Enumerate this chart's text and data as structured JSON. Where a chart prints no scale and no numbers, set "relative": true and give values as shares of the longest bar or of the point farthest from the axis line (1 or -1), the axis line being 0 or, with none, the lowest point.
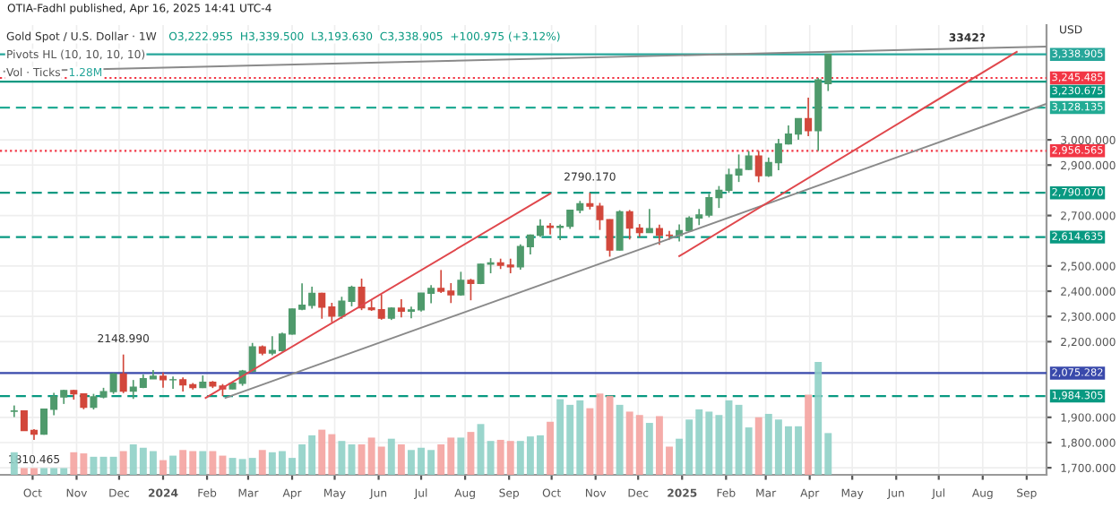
{
  "chart_data": [
    {
      "type": "candlestick",
      "title": "Gold Spot / U.S. Dollar · 1W",
      "subtitle": "O3,222.955  H3,339.500  L3,193.630  C3,338.905  +100.975 (+3.12%)",
      "ylabel": "USD",
      "x": [
        "2023-09-18",
        "2023-09-25",
        "2023-10-02",
        "2023-10-09",
        "2023-10-16",
        "2023-10-23",
        "2023-10-30",
        "2023-11-06",
        "2023-11-13",
        "2023-11-20",
        "2023-11-27",
        "2023-12-04",
        "2023-12-11",
        "2023-12-18",
        "2023-12-25",
        "2024-01-01",
        "2024-01-08",
        "2024-01-15",
        "2024-01-22",
        "2024-01-29",
        "2024-02-05",
        "2024-02-12",
        "2024-02-19",
        "2024-02-26",
        "2024-03-04",
        "2024-03-11",
        "2024-03-18",
        "2024-03-25",
        "2024-04-01",
        "2024-04-08",
        "2024-04-15",
        "2024-04-22",
        "2024-04-29",
        "2024-05-06",
        "2024-05-13",
        "2024-05-20",
        "2024-05-27",
        "2024-06-03",
        "2024-06-10",
        "2024-06-17",
        "2024-06-24",
        "2024-07-01",
        "2024-07-08",
        "2024-07-15",
        "2024-07-22",
        "2024-07-29",
        "2024-08-05",
        "2024-08-12",
        "2024-08-19",
        "2024-08-26",
        "2024-09-02",
        "2024-09-09",
        "2024-09-16",
        "2024-09-23",
        "2024-09-30",
        "2024-10-07",
        "2024-10-14",
        "2024-10-21",
        "2024-10-28",
        "2024-11-04",
        "2024-11-11",
        "2024-11-18",
        "2024-11-25",
        "2024-12-02",
        "2024-12-09",
        "2024-12-16",
        "2024-12-23",
        "2024-12-30",
        "2025-01-06",
        "2025-01-13",
        "2025-01-20",
        "2025-01-27",
        "2025-02-03",
        "2025-02-10",
        "2025-02-17",
        "2025-02-24",
        "2025-03-03",
        "2025-03-10",
        "2025-03-17",
        "2025-03-24",
        "2025-03-31",
        "2025-04-07",
        "2025-04-14"
      ],
      "ohlc": [
        [
          1924,
          1947,
          1901,
          1925
        ],
        [
          1925,
          1928,
          1846,
          1848
        ],
        [
          1848,
          1853,
          1810.465,
          1833
        ],
        [
          1833,
          1935,
          1831,
          1932
        ],
        [
          1932,
          1997,
          1908,
          1981
        ],
        [
          1981,
          2009,
          1953,
          2006
        ],
        [
          2006,
          2009,
          1970,
          1993
        ],
        [
          1993,
          1995,
          1932,
          1940
        ],
        [
          1940,
          1993,
          1931,
          1981
        ],
        [
          1981,
          2017,
          1975,
          2002
        ],
        [
          2002,
          2075,
          1993,
          2072
        ],
        [
          2072,
          2148.99,
          1996,
          2004
        ],
        [
          2004,
          2048,
          1973,
          2019
        ],
        [
          2019,
          2070,
          2016,
          2053
        ],
        [
          2053,
          2088,
          2052,
          2063
        ],
        [
          2063,
          2078,
          2017,
          2049
        ],
        [
          2049,
          2062,
          2013,
          2049
        ],
        [
          2049,
          2058,
          2002,
          2029
        ],
        [
          2029,
          2036,
          2010,
          2018
        ],
        [
          2018,
          2066,
          2016,
          2039
        ],
        [
          2039,
          2044,
          2016,
          2024
        ],
        [
          2024,
          2032,
          1984,
          2013
        ],
        [
          2013,
          2041,
          2011,
          2035
        ],
        [
          2035,
          2088,
          2025,
          2083
        ],
        [
          2083,
          2195,
          2078,
          2179
        ],
        [
          2179,
          2185,
          2146,
          2155
        ],
        [
          2155,
          2222,
          2146,
          2165
        ],
        [
          2165,
          2236,
          2160,
          2230
        ],
        [
          2230,
          2331,
          2228,
          2329
        ],
        [
          2329,
          2431,
          2325,
          2344
        ],
        [
          2344,
          2418,
          2331,
          2391
        ],
        [
          2391,
          2394,
          2291,
          2337
        ],
        [
          2337,
          2354,
          2277,
          2301
        ],
        [
          2301,
          2378,
          2291,
          2360
        ],
        [
          2360,
          2422,
          2340,
          2415
        ],
        [
          2415,
          2450,
          2325,
          2334
        ],
        [
          2334,
          2364,
          2322,
          2327
        ],
        [
          2327,
          2387,
          2287,
          2293
        ],
        [
          2293,
          2336,
          2286,
          2333
        ],
        [
          2333,
          2368,
          2296,
          2321
        ],
        [
          2321,
          2339,
          2293,
          2326
        ],
        [
          2326,
          2393,
          2319,
          2392
        ],
        [
          2392,
          2424,
          2352,
          2411
        ],
        [
          2411,
          2484,
          2393,
          2400
        ],
        [
          2400,
          2432,
          2353,
          2386
        ],
        [
          2386,
          2477,
          2382,
          2443
        ],
        [
          2443,
          2449,
          2364,
          2431
        ],
        [
          2431,
          2509,
          2428,
          2507
        ],
        [
          2507,
          2531,
          2471,
          2512
        ],
        [
          2512,
          2529,
          2488,
          2503
        ],
        [
          2503,
          2529,
          2471,
          2497
        ],
        [
          2497,
          2586,
          2485,
          2577
        ],
        [
          2577,
          2625,
          2546,
          2622
        ],
        [
          2622,
          2685,
          2615,
          2658
        ],
        [
          2658,
          2670,
          2625,
          2653
        ],
        [
          2653,
          2665,
          2603,
          2657
        ],
        [
          2657,
          2722,
          2647,
          2721
        ],
        [
          2721,
          2758,
          2709,
          2747
        ],
        [
          2747,
          2790.17,
          2724,
          2737
        ],
        [
          2737,
          2750,
          2643,
          2684
        ],
        [
          2684,
          2685,
          2537,
          2563
        ],
        [
          2563,
          2721,
          2561,
          2715
        ],
        [
          2715,
          2722,
          2605,
          2650
        ],
        [
          2650,
          2666,
          2615,
          2633
        ],
        [
          2633,
          2726,
          2631,
          2648
        ],
        [
          2648,
          2664,
          2584,
          2622
        ],
        [
          2622,
          2639,
          2604,
          2621
        ],
        [
          2621,
          2665,
          2597,
          2640
        ],
        [
          2640,
          2697,
          2636,
          2690
        ],
        [
          2690,
          2726,
          2662,
          2702
        ],
        [
          2702,
          2786,
          2693,
          2771
        ],
        [
          2771,
          2817,
          2730,
          2800
        ],
        [
          2800,
          2886,
          2790,
          2861
        ],
        [
          2861,
          2942,
          2833,
          2883
        ],
        [
          2883,
          2955,
          2881,
          2936
        ],
        [
          2936,
          2956,
          2832,
          2858
        ],
        [
          2858,
          2930,
          2853,
          2910
        ],
        [
          2910,
          3004,
          2880,
          2984
        ],
        [
          2984,
          3057,
          2982,
          3023
        ],
        [
          3023,
          3086,
          3000,
          3084
        ],
        [
          3084,
          3167,
          3015,
          3037
        ],
        [
          3037,
          3245.485,
          2956.565,
          3238
        ],
        [
          3222.955,
          3339.5,
          3193.63,
          3338.905
        ]
      ],
      "colors": [
        "#4f9a6c",
        "#d2473b",
        "#d2473b",
        "#4f9a6c",
        "#4f9a6c",
        "#4f9a6c",
        "#d2473b",
        "#d2473b",
        "#4f9a6c",
        "#4f9a6c",
        "#4f9a6c",
        "#d2473b",
        "#4f9a6c",
        "#4f9a6c",
        "#4f9a6c",
        "#d2473b",
        "#4f9a6c",
        "#d2473b",
        "#d2473b",
        "#4f9a6c",
        "#d2473b",
        "#d2473b",
        "#4f9a6c",
        "#4f9a6c",
        "#4f9a6c",
        "#d2473b",
        "#4f9a6c",
        "#4f9a6c",
        "#4f9a6c",
        "#4f9a6c",
        "#4f9a6c",
        "#d2473b",
        "#d2473b",
        "#4f9a6c",
        "#4f9a6c",
        "#d2473b",
        "#d2473b",
        "#d2473b",
        "#4f9a6c",
        "#d2473b",
        "#4f9a6c",
        "#4f9a6c",
        "#4f9a6c",
        "#d2473b",
        "#d2473b",
        "#4f9a6c",
        "#d2473b",
        "#4f9a6c",
        "#4f9a6c",
        "#d2473b",
        "#d2473b",
        "#4f9a6c",
        "#4f9a6c",
        "#4f9a6c",
        "#d2473b",
        "#4f9a6c",
        "#4f9a6c",
        "#4f9a6c",
        "#d2473b",
        "#d2473b",
        "#d2473b",
        "#4f9a6c",
        "#d2473b",
        "#d2473b",
        "#4f9a6c",
        "#d2473b",
        "#d2473b",
        "#4f9a6c",
        "#4f9a6c",
        "#4f9a6c",
        "#4f9a6c",
        "#4f9a6c",
        "#4f9a6c",
        "#4f9a6c",
        "#4f9a6c",
        "#d2473b",
        "#4f9a6c",
        "#4f9a6c",
        "#4f9a6c",
        "#4f9a6c",
        "#d2473b",
        "#4f9a6c",
        "#4f9a6c"
      ],
      "series": [
        {
          "type": "line",
          "x": [
            "2023-09-11",
            "2025-09-15"
          ],
          "values": [
            3271,
            3370
          ],
          "color": "#8a8a8a"
        },
        {
          "type": "line",
          "x": [
            "2024-02-14",
            "2025-09-15"
          ],
          "values": [
            1977,
            3143
          ],
          "color": "#8a8a8a"
        },
        {
          "type": "line",
          "x": [
            "2024-01-31",
            "2024-09-30"
          ],
          "values": [
            1977,
            2787
          ],
          "color": "#e0474c"
        },
        {
          "type": "line",
          "x": [
            "2024-12-30",
            "2025-08-25"
          ],
          "values": [
            2539,
            3349
          ],
          "color": "#e0474c"
        }
      ],
      "ref_lines": [
        {
          "axis": "y",
          "value": 3338.905,
          "label": "3,338.905",
          "color": "#26a69a",
          "line_style": "solid"
        },
        {
          "axis": "y",
          "value": 3245.485,
          "label": "3,245.485",
          "color": "#f23645",
          "line_style": "dotted"
        },
        {
          "axis": "y",
          "value": 3230.675,
          "label": "3,230.675",
          "color": "#089981",
          "line_style": "solid"
        },
        {
          "axis": "y",
          "value": 3128.135,
          "label": "3,128.135",
          "color": "#22ab94",
          "line_style": "dashed"
        },
        {
          "axis": "y",
          "value": 2956.565,
          "label": "2,956.565",
          "color": "#f23645",
          "line_style": "dotted"
        },
        {
          "axis": "y",
          "value": 2790.07,
          "label": "2,790.070",
          "color": "#089981",
          "line_style": "dashed"
        },
        {
          "axis": "y",
          "value": 2614.635,
          "label": "2,614.635",
          "color": "#089981",
          "line_style": "dashed"
        },
        {
          "axis": "y",
          "value": 2075.282,
          "label": "2,075.282",
          "color": "#3949ab",
          "line_style": "solid"
        },
        {
          "axis": "y",
          "value": 1984.305,
          "label": "1,984.305",
          "color": "#089981",
          "line_style": "dashed"
        }
      ],
      "annotations": [
        "OTIA-Fadhl published, Apr 16, 2025 14:41 UTC-4",
        "Pivots HL (10, 10, 10, 10)",
        {
          "text": "2148.990",
          "x": "2023-12-04",
          "y": 2148.99
        },
        {
          "text": "1810.465",
          "x": "2023-10-02",
          "y": 1810.465
        },
        {
          "text": "2790.170",
          "x": "2024-10-28",
          "y": 2790.17
        },
        {
          "text": "3342?",
          "x": "2025-07-21",
          "y": 3342
        }
      ],
      "xlim": [
        "2023-09-08",
        "2025-09-15"
      ],
      "xticks": [
        {
          "value": "2023-10-01",
          "label": "Oct"
        },
        {
          "value": "2023-11-01",
          "label": "Nov"
        },
        {
          "value": "2023-12-01",
          "label": "Dec"
        },
        {
          "value": "2024-01-01",
          "label": "2024"
        },
        {
          "value": "2024-02-01",
          "label": "Feb"
        },
        {
          "value": "2024-03-01",
          "label": "Mar"
        },
        {
          "value": "2024-04-01",
          "label": "Apr"
        },
        {
          "value": "2024-05-01",
          "label": "May"
        },
        {
          "value": "2024-06-01",
          "label": "Jun"
        },
        {
          "value": "2024-07-01",
          "label": "Jul"
        },
        {
          "value": "2024-08-01",
          "label": "Aug"
        },
        {
          "value": "2024-09-01",
          "label": "Sep"
        },
        {
          "value": "2024-10-01",
          "label": "Oct"
        },
        {
          "value": "2024-11-01",
          "label": "Nov"
        },
        {
          "value": "2024-12-01",
          "label": "Dec"
        },
        {
          "value": "2025-01-01",
          "label": "2025"
        },
        {
          "value": "2025-02-01",
          "label": "Feb"
        },
        {
          "value": "2025-03-01",
          "label": "Mar"
        },
        {
          "value": "2025-04-01",
          "label": "Apr"
        },
        {
          "value": "2025-05-01",
          "label": "May"
        },
        {
          "value": "2025-06-01",
          "label": "Jun"
        },
        {
          "value": "2025-07-01",
          "label": "Jul"
        },
        {
          "value": "2025-08-01",
          "label": "Aug"
        },
        {
          "value": "2025-09-01",
          "label": "Sep"
        }
      ],
      "ylim": [
        1672,
        3455
      ],
      "yticks": [
        {
          "value": 1700,
          "label": "1,700.000"
        },
        {
          "value": 1800,
          "label": "1,800.000"
        },
        {
          "value": 1900,
          "label": "1,900.000"
        },
        {
          "value": 2200,
          "label": "2,200.000"
        },
        {
          "value": 2300,
          "label": "2,300.000"
        },
        {
          "value": 2400,
          "label": "2,400.000"
        },
        {
          "value": 2500,
          "label": "2,500.000"
        },
        {
          "value": 2700,
          "label": "2,700.000"
        },
        {
          "value": 2900,
          "label": "2,900.000"
        },
        {
          "value": 3000,
          "label": "3,000.000"
        }
      ],
      "grid": true
    },
    {
      "type": "bar",
      "relative": true,
      "tick_labels": false,
      "xlim": [
        "2023-09-08",
        "2025-09-15"
      ],
      "annotations": [
        "Vol · Ticks",
        "1.28M"
      ],
      "x": [
        "2023-09-18",
        "2023-09-25",
        "2023-10-02",
        "2023-10-09",
        "2023-10-16",
        "2023-10-23",
        "2023-10-30",
        "2023-11-06",
        "2023-11-13",
        "2023-11-20",
        "2023-11-27",
        "2023-12-04",
        "2023-12-11",
        "2023-12-18",
        "2023-12-25",
        "2024-01-01",
        "2024-01-08",
        "2024-01-15",
        "2024-01-22",
        "2024-01-29",
        "2024-02-05",
        "2024-02-12",
        "2024-02-19",
        "2024-02-26",
        "2024-03-04",
        "2024-03-11",
        "2024-03-18",
        "2024-03-25",
        "2024-04-01",
        "2024-04-08",
        "2024-04-15",
        "2024-04-22",
        "2024-04-29",
        "2024-05-06",
        "2024-05-13",
        "2024-05-20",
        "2024-05-27",
        "2024-06-03",
        "2024-06-10",
        "2024-06-17",
        "2024-06-24",
        "2024-07-01",
        "2024-07-08",
        "2024-07-15",
        "2024-07-22",
        "2024-07-29",
        "2024-08-05",
        "2024-08-12",
        "2024-08-19",
        "2024-08-26",
        "2024-09-02",
        "2024-09-09",
        "2024-09-16",
        "2024-09-23",
        "2024-09-30",
        "2024-10-07",
        "2024-10-14",
        "2024-10-21",
        "2024-10-28",
        "2024-11-04",
        "2024-11-11",
        "2024-11-18",
        "2024-11-25",
        "2024-12-02",
        "2024-12-09",
        "2024-12-16",
        "2024-12-23",
        "2024-12-30",
        "2025-01-06",
        "2025-01-13",
        "2025-01-20",
        "2025-01-27",
        "2025-02-03",
        "2025-02-10",
        "2025-02-17",
        "2025-02-24",
        "2025-03-03",
        "2025-03-10",
        "2025-03-17",
        "2025-03-24",
        "2025-03-31",
        "2025-04-07",
        "2025-04-14"
      ],
      "values": [
        0.2,
        0.06,
        0.06,
        0.06,
        0.06,
        0.06,
        0.2,
        0.19,
        0.16,
        0.16,
        0.16,
        0.21,
        0.27,
        0.24,
        0.21,
        0.13,
        0.17,
        0.22,
        0.21,
        0.21,
        0.21,
        0.17,
        0.15,
        0.14,
        0.15,
        0.22,
        0.2,
        0.21,
        0.15,
        0.27,
        0.35,
        0.4,
        0.36,
        0.3,
        0.27,
        0.27,
        0.33,
        0.25,
        0.32,
        0.27,
        0.22,
        0.24,
        0.22,
        0.27,
        0.33,
        0.33,
        0.38,
        0.45,
        0.3,
        0.31,
        0.3,
        0.3,
        0.34,
        0.35,
        0.47,
        0.67,
        0.62,
        0.66,
        0.59,
        0.72,
        0.7,
        0.62,
        0.56,
        0.53,
        0.46,
        0.52,
        0.25,
        0.32,
        0.49,
        0.58,
        0.56,
        0.53,
        0.66,
        0.62,
        0.42,
        0.51,
        0.54,
        0.49,
        0.43,
        0.43,
        0.71,
        1,
        0.37
      ],
      "colors": [
        "#8fd0c6",
        "#f4a3a0",
        "#f4a3a0",
        "#8fd0c6",
        "#8fd0c6",
        "#8fd0c6",
        "#f4a3a0",
        "#f4a3a0",
        "#8fd0c6",
        "#8fd0c6",
        "#8fd0c6",
        "#f4a3a0",
        "#8fd0c6",
        "#8fd0c6",
        "#8fd0c6",
        "#f4a3a0",
        "#8fd0c6",
        "#f4a3a0",
        "#f4a3a0",
        "#8fd0c6",
        "#f4a3a0",
        "#f4a3a0",
        "#8fd0c6",
        "#8fd0c6",
        "#8fd0c6",
        "#f4a3a0",
        "#8fd0c6",
        "#8fd0c6",
        "#8fd0c6",
        "#8fd0c6",
        "#8fd0c6",
        "#f4a3a0",
        "#f4a3a0",
        "#8fd0c6",
        "#8fd0c6",
        "#f4a3a0",
        "#f4a3a0",
        "#f4a3a0",
        "#8fd0c6",
        "#f4a3a0",
        "#8fd0c6",
        "#8fd0c6",
        "#8fd0c6",
        "#f4a3a0",
        "#f4a3a0",
        "#8fd0c6",
        "#f4a3a0",
        "#8fd0c6",
        "#8fd0c6",
        "#f4a3a0",
        "#f4a3a0",
        "#8fd0c6",
        "#8fd0c6",
        "#8fd0c6",
        "#f4a3a0",
        "#8fd0c6",
        "#8fd0c6",
        "#8fd0c6",
        "#f4a3a0",
        "#f4a3a0",
        "#f4a3a0",
        "#8fd0c6",
        "#f4a3a0",
        "#f4a3a0",
        "#8fd0c6",
        "#f4a3a0",
        "#f4a3a0",
        "#8fd0c6",
        "#8fd0c6",
        "#8fd0c6",
        "#8fd0c6",
        "#8fd0c6",
        "#8fd0c6",
        "#8fd0c6",
        "#8fd0c6",
        "#f4a3a0",
        "#8fd0c6",
        "#8fd0c6",
        "#8fd0c6",
        "#8fd0c6",
        "#f4a3a0",
        "#8fd0c6",
        "#8fd0c6"
      ]
    }
  ]
}
